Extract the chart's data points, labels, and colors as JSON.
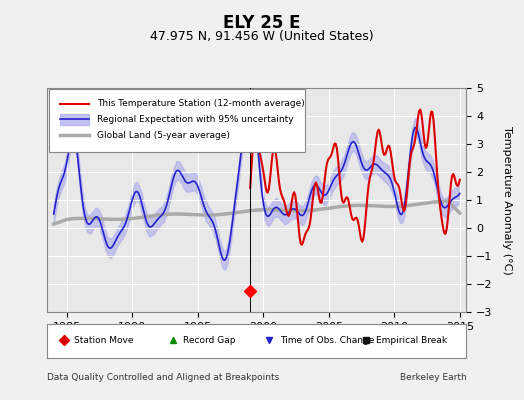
{
  "title": "ELY 25 E",
  "subtitle": "47.975 N, 91.456 W (United States)",
  "ylabel": "Temperature Anomaly (°C)",
  "xlabel_left": "Data Quality Controlled and Aligned at Breakpoints",
  "xlabel_right": "Berkeley Earth",
  "xlim": [
    1983.5,
    2015.5
  ],
  "ylim": [
    -3.0,
    5.0
  ],
  "yticks": [
    -3,
    -2,
    -1,
    0,
    1,
    2,
    3,
    4,
    5
  ],
  "xticks": [
    1985,
    1990,
    1995,
    2000,
    2005,
    2010,
    2015
  ],
  "vline_year": 1999.0,
  "station_move_year": 1999.0,
  "station_move_val": -2.25,
  "background_color": "#f0f0f0",
  "plot_bg_color": "#e8e8e8",
  "red_color": "#dd0000",
  "blue_color": "#2222cc",
  "blue_shade_color": "#aaaaee",
  "gray_color": "#aaaaaa",
  "legend_fontsize": 8,
  "title_fontsize": 12,
  "subtitle_fontsize": 9
}
